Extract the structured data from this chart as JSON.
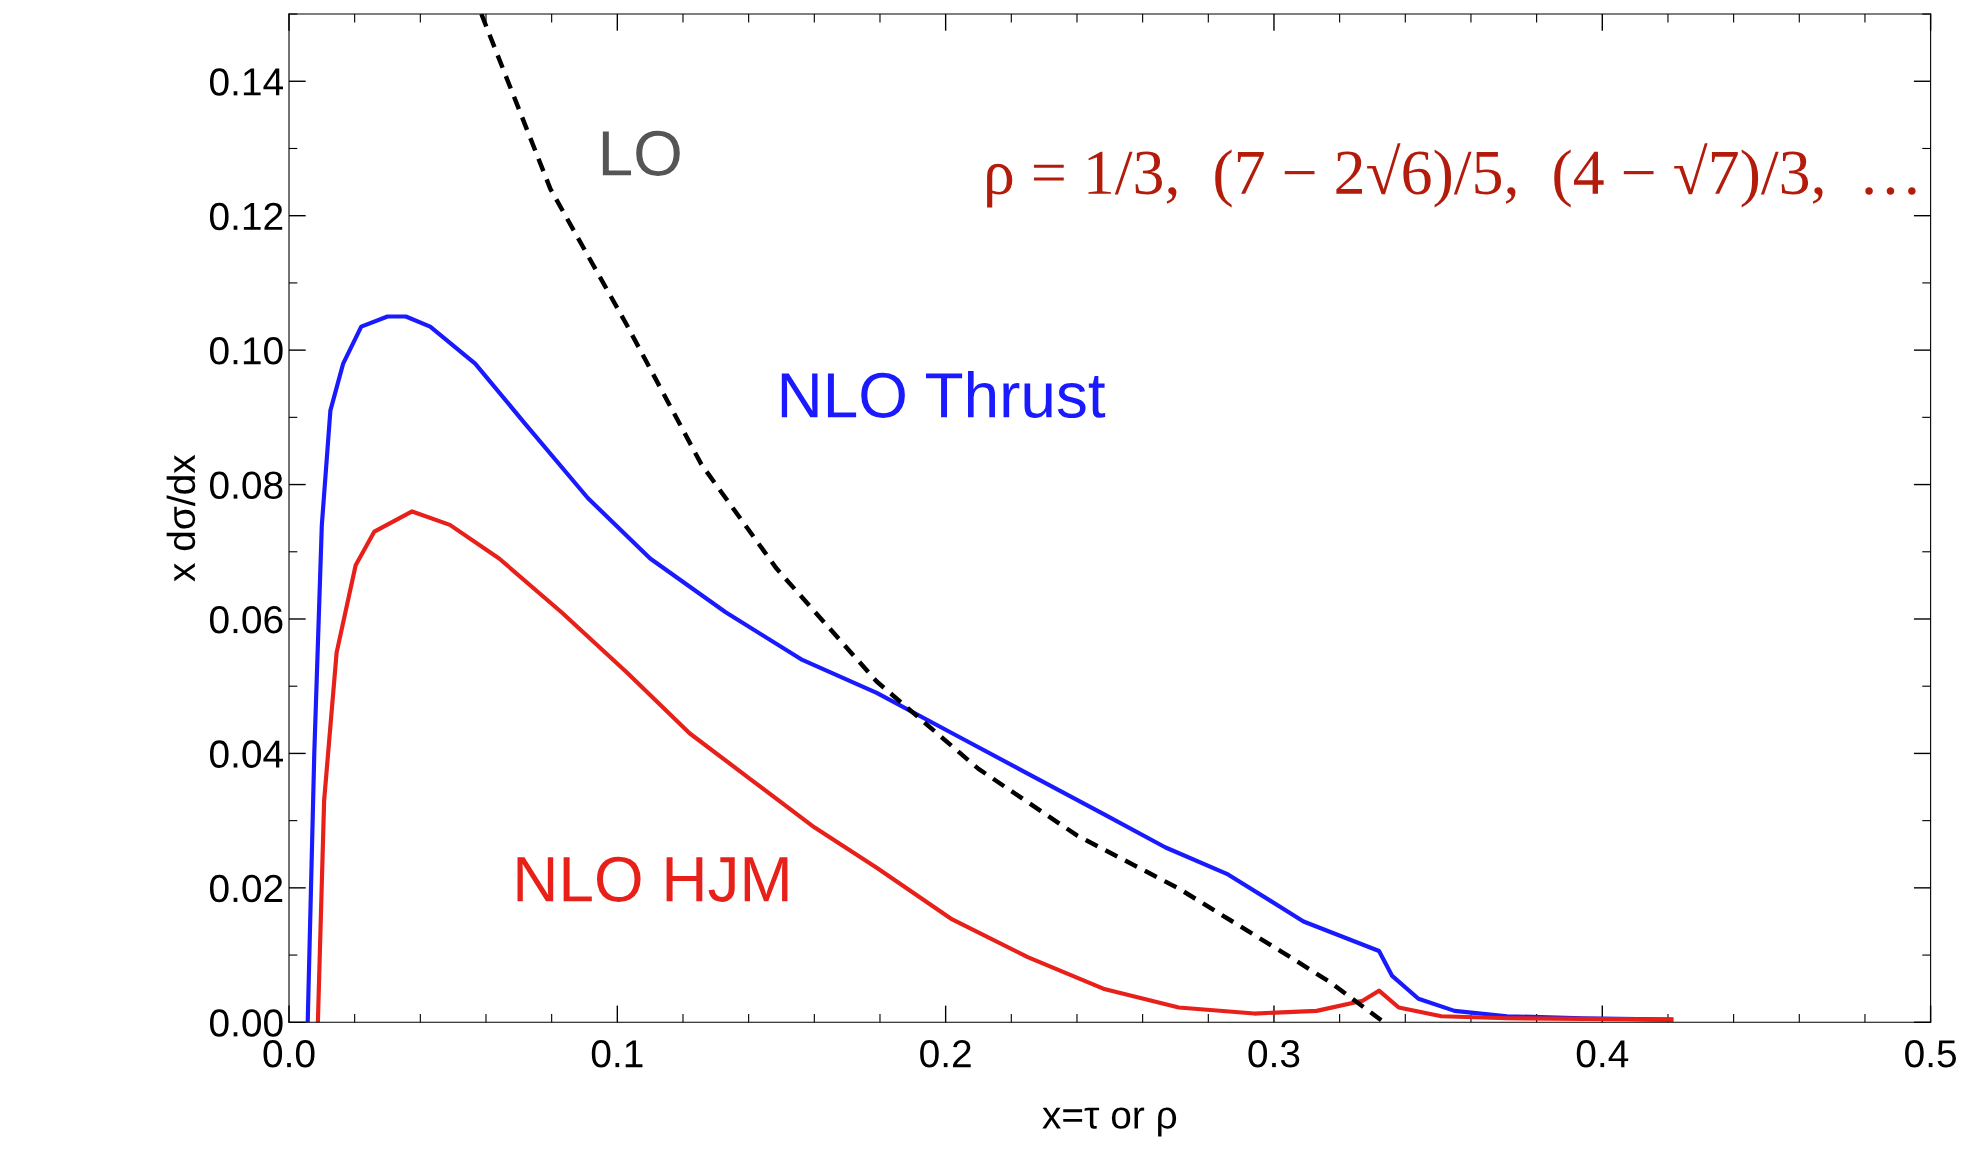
{
  "chart_data": {
    "type": "line",
    "xlabel": "x=τ or ρ",
    "ylabel": "x dσ/dx",
    "xlim": [
      0,
      0.5
    ],
    "ylim": [
      0,
      0.15
    ],
    "xticks": [
      {
        "value": 0,
        "label": "0.0"
      },
      0.1,
      0.2,
      0.3,
      0.4,
      {
        "value": 0.5,
        "label": "0.5"
      }
    ],
    "yticks": [
      {
        "value": 0,
        "label": "0.00"
      },
      {
        "value": 0.02,
        "label": "0.02"
      },
      {
        "value": 0.04,
        "label": "0.04"
      },
      {
        "value": 0.06,
        "label": "0.06"
      },
      {
        "value": 0.08,
        "label": "0.08"
      },
      {
        "value": 0.1,
        "label": "0.10"
      },
      {
        "value": 0.12,
        "label": "0.12"
      },
      {
        "value": 0.14,
        "label": "0.14"
      }
    ],
    "grid": false,
    "legend": false,
    "series": [
      {
        "name": "NLO Thrust",
        "color": "#1a1aff",
        "line_style": "solid",
        "x": [
          0.0057,
          0.0077,
          0.01,
          0.0126,
          0.0165,
          0.022,
          0.03,
          0.0356,
          0.043,
          0.0567,
          0.072,
          0.091,
          0.11,
          0.133,
          0.156,
          0.179,
          0.202,
          0.225,
          0.248,
          0.267,
          0.286,
          0.309,
          0.332,
          0.336,
          0.344,
          0.355,
          0.371,
          0.394,
          0.421
        ],
        "values": [
          0,
          0.04,
          0.074,
          0.091,
          0.098,
          0.1035,
          0.105,
          0.105,
          0.1035,
          0.098,
          0.089,
          0.078,
          0.069,
          0.061,
          0.054,
          0.049,
          0.043,
          0.037,
          0.031,
          0.026,
          0.022,
          0.015,
          0.0106,
          0.0069,
          0.0035,
          0.0017,
          0.0009,
          0.0006,
          0.0004
        ]
      },
      {
        "name": "NLO HJM",
        "color": "#e8201a",
        "line_style": "solid",
        "x": [
          0.0088,
          0.0107,
          0.0145,
          0.0203,
          0.026,
          0.0375,
          0.049,
          0.064,
          0.083,
          0.103,
          0.122,
          0.141,
          0.16,
          0.179,
          0.202,
          0.225,
          0.248,
          0.271,
          0.294,
          0.313,
          0.327,
          0.332,
          0.338,
          0.351,
          0.371,
          0.421
        ],
        "values": [
          0,
          0.033,
          0.055,
          0.068,
          0.073,
          0.076,
          0.074,
          0.069,
          0.061,
          0.052,
          0.043,
          0.036,
          0.029,
          0.023,
          0.0153,
          0.0097,
          0.005,
          0.0022,
          0.0013,
          0.0017,
          0.0032,
          0.0047,
          0.0022,
          0.0009,
          0.0006,
          0.0004
        ]
      },
      {
        "name": "LO",
        "color": "#000000",
        "line_style": "dashed",
        "x": [
          0.0586,
          0.0796,
          0.1026,
          0.1256,
          0.1485,
          0.179,
          0.21,
          0.24,
          0.271,
          0.302,
          0.317,
          0.3335
        ],
        "values": [
          0.15,
          0.124,
          0.104,
          0.083,
          0.0675,
          0.0507,
          0.0377,
          0.0278,
          0.0199,
          0.0106,
          0.006,
          0
        ]
      }
    ],
    "annotations": [
      "ρ = 1/3,  (7 − 2√6)/5,  (4 − √7)/3,  …"
    ]
  }
}
